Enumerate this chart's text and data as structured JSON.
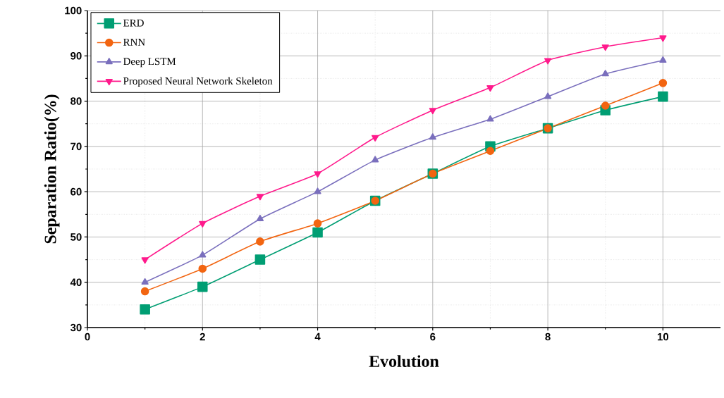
{
  "chart_data": {
    "type": "line",
    "xlabel": "Evolution",
    "ylabel": "Separation Ratio(%)",
    "x": [
      1,
      2,
      3,
      4,
      5,
      6,
      7,
      8,
      9,
      10
    ],
    "xlim": [
      0,
      11
    ],
    "xticks": [
      0,
      2,
      4,
      6,
      8,
      10
    ],
    "ylim": [
      30,
      100
    ],
    "yticks": [
      30,
      40,
      50,
      60,
      70,
      80,
      90,
      100
    ],
    "grid": true,
    "legend": "top left",
    "line_style": "solid",
    "series": [
      {
        "name": "ERD",
        "color": "#009e73",
        "marker": "square",
        "values": [
          34,
          39,
          45,
          51,
          58,
          64,
          70,
          74,
          78,
          81
        ]
      },
      {
        "name": "RNN",
        "color": "#f26511",
        "marker": "circle",
        "values": [
          38,
          43,
          49,
          53,
          58,
          64,
          69,
          74,
          79,
          84
        ]
      },
      {
        "name": "Deep LSTM",
        "color": "#7a6fbd",
        "marker": "triangle",
        "values": [
          40,
          46,
          54,
          60,
          67,
          72,
          76,
          81,
          86,
          89
        ]
      },
      {
        "name": "Proposed Neural Network Skeleton",
        "color": "#ff1a8c",
        "marker": "triangle down",
        "values": [
          45,
          53,
          59,
          64,
          72,
          78,
          83,
          89,
          92,
          94
        ]
      }
    ]
  }
}
